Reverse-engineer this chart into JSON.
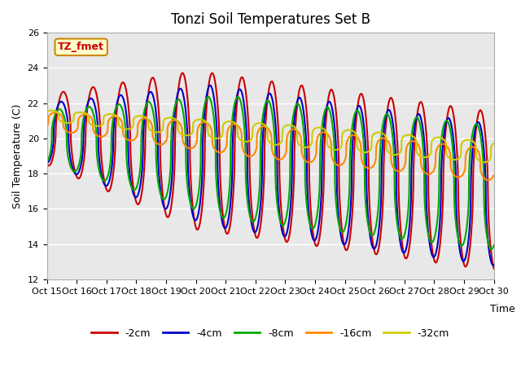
{
  "title": "Tonzi Soil Temperatures Set B",
  "xlabel": "Time",
  "ylabel": "Soil Temperature (C)",
  "ylim": [
    12,
    26
  ],
  "xlim": [
    0,
    15
  ],
  "x_tick_labels": [
    "Oct 15",
    "Oct 16",
    "Oct 17",
    "Oct 18",
    "Oct 19",
    "Oct 20",
    "Oct 21",
    "Oct 22",
    "Oct 23",
    "Oct 24",
    "Oct 25",
    "Oct 26",
    "Oct 27",
    "Oct 28",
    "Oct 29",
    "Oct 30"
  ],
  "series_labels": [
    "-2cm",
    "-4cm",
    "-8cm",
    "-16cm",
    "-32cm"
  ],
  "series_colors": [
    "#cc0000",
    "#0000cc",
    "#00aa00",
    "#ff8800",
    "#cccc00"
  ],
  "series_linewidths": [
    1.5,
    1.5,
    1.5,
    1.5,
    1.5
  ],
  "plot_bg_color": "#e8e8e8",
  "annotation_text": "TZ_fmet",
  "annotation_color": "#cc0000",
  "annotation_bg": "#ffffcc",
  "annotation_border": "#cc8800",
  "grid_color": "#ffffff",
  "title_fontsize": 12,
  "label_fontsize": 9,
  "tick_fontsize": 8
}
